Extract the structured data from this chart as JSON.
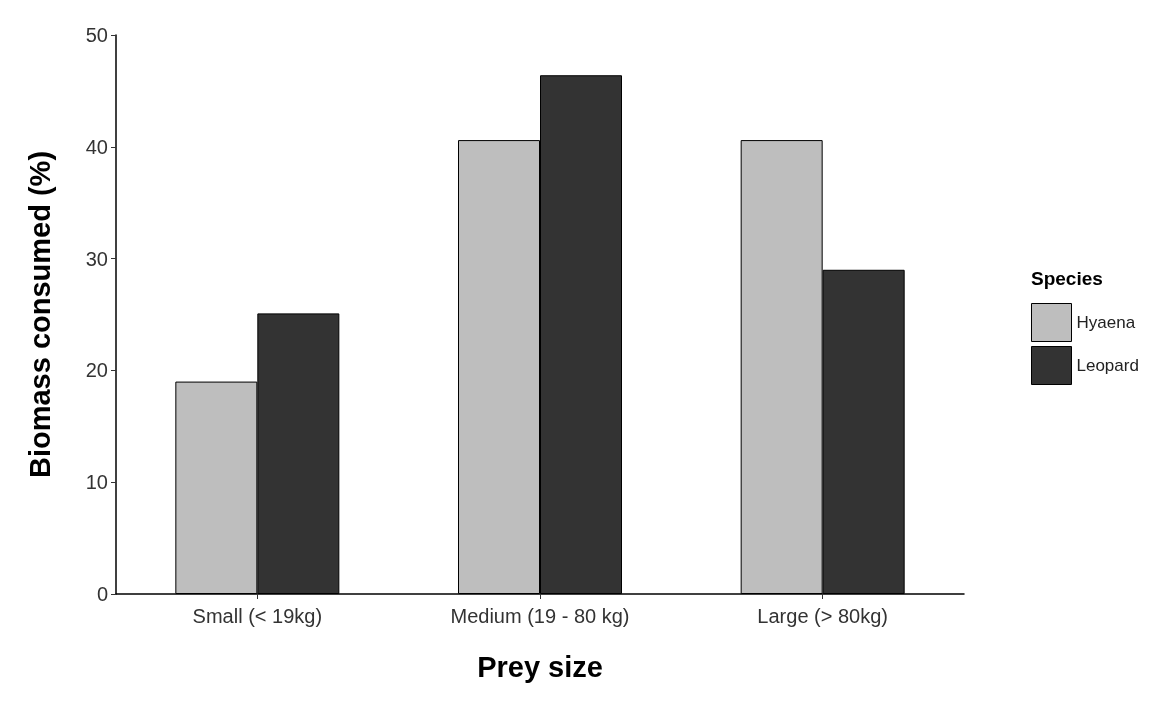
{
  "chart_data": {
    "type": "bar",
    "xlabel": "Prey size",
    "ylabel": "Biomass consumed (%)",
    "legend_title": "Species",
    "categories": [
      "Small (< 19kg)",
      "Medium (19 - 80 kg)",
      "Large (> 80kg)"
    ],
    "series": [
      {
        "name": "Hyaena",
        "color": "#bebebe",
        "values": [
          19,
          40.6,
          40.6
        ]
      },
      {
        "name": "Leopard",
        "color": "#333333",
        "values": [
          25.1,
          46.4,
          29
        ]
      }
    ],
    "ylim": [
      0,
      50
    ],
    "yticks": [
      0,
      10,
      20,
      30,
      40,
      50
    ],
    "grid": false,
    "legend": "right"
  }
}
